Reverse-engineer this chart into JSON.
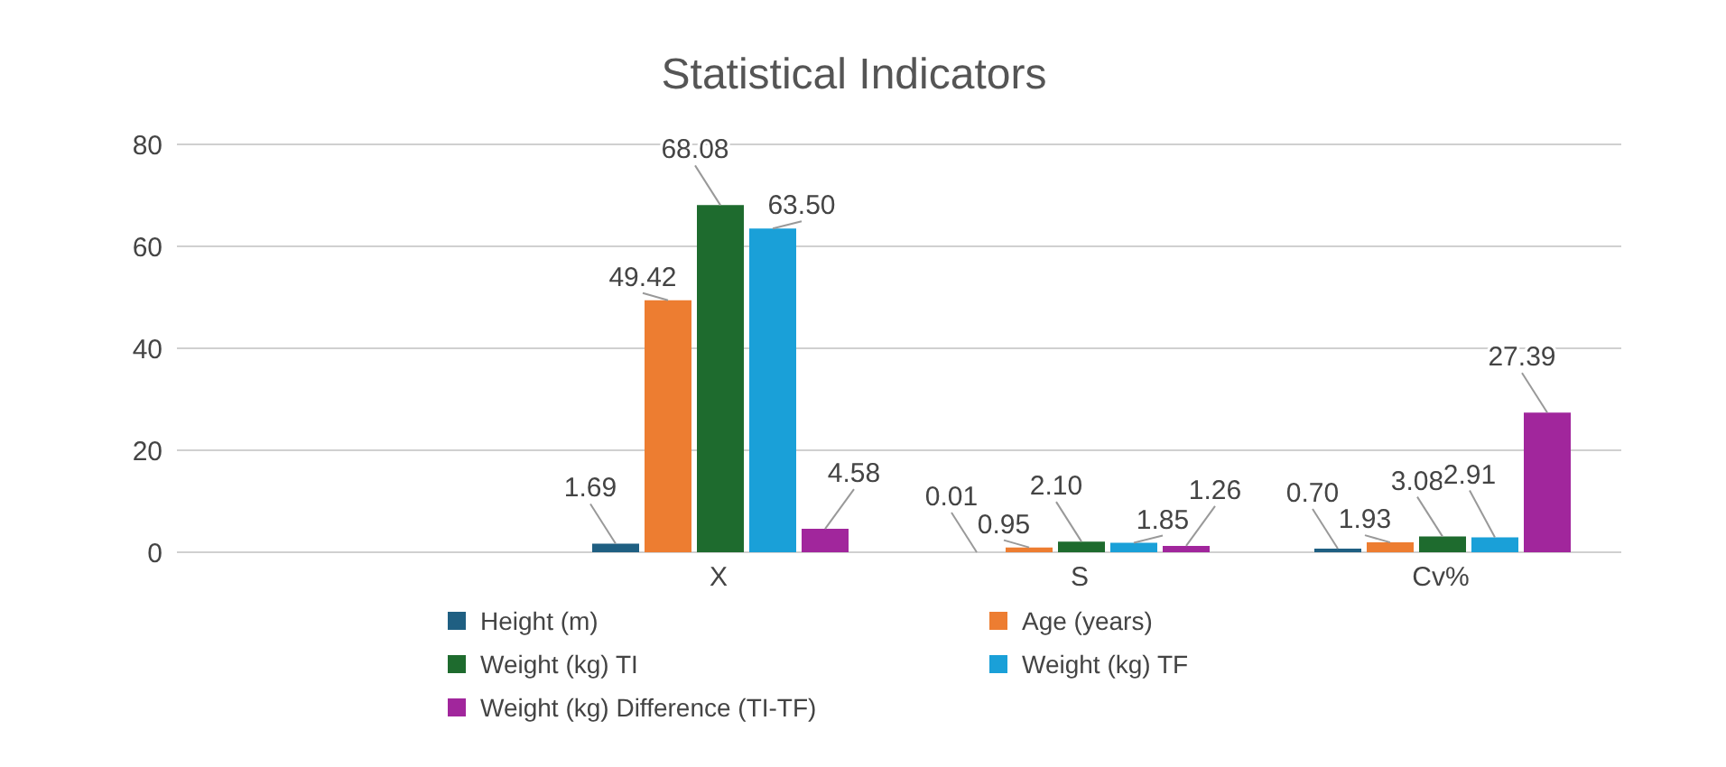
{
  "chart_data": {
    "type": "bar",
    "title": "Statistical Indicators",
    "categories": [
      null,
      "X",
      "S",
      "Cv%"
    ],
    "series": [
      {
        "name": "Height (m)",
        "color": "#1f5f82",
        "values": [
          null,
          1.69,
          0.01,
          0.7
        ],
        "value_labels": [
          null,
          "1.69",
          "0.01",
          "0.70"
        ]
      },
      {
        "name": "Age (years)",
        "color": "#ed7d31",
        "values": [
          null,
          49.42,
          0.95,
          1.93
        ],
        "value_labels": [
          null,
          "49.42",
          "0.95",
          "1.93"
        ]
      },
      {
        "name": "Weight (kg) TI",
        "color": "#1e6b2e",
        "values": [
          null,
          68.08,
          2.1,
          3.08
        ],
        "value_labels": [
          null,
          "68.08",
          "2.10",
          "3.08"
        ]
      },
      {
        "name": "Weight (kg) TF",
        "color": "#1aa0d8",
        "values": [
          null,
          63.5,
          1.85,
          2.91
        ],
        "value_labels": [
          null,
          "63.50",
          "1.85",
          "2.91"
        ]
      },
      {
        "name": "Weight (kg) Difference (TI-TF)",
        "color": "#a1269c",
        "values": [
          null,
          4.58,
          1.26,
          27.39
        ],
        "value_labels": [
          null,
          "4.58",
          "1.26",
          "27.39"
        ]
      }
    ],
    "ylim": [
      0,
      80
    ],
    "yticks": [
      0,
      20,
      40,
      60,
      80
    ],
    "grid": "y",
    "legend": "bottom"
  }
}
